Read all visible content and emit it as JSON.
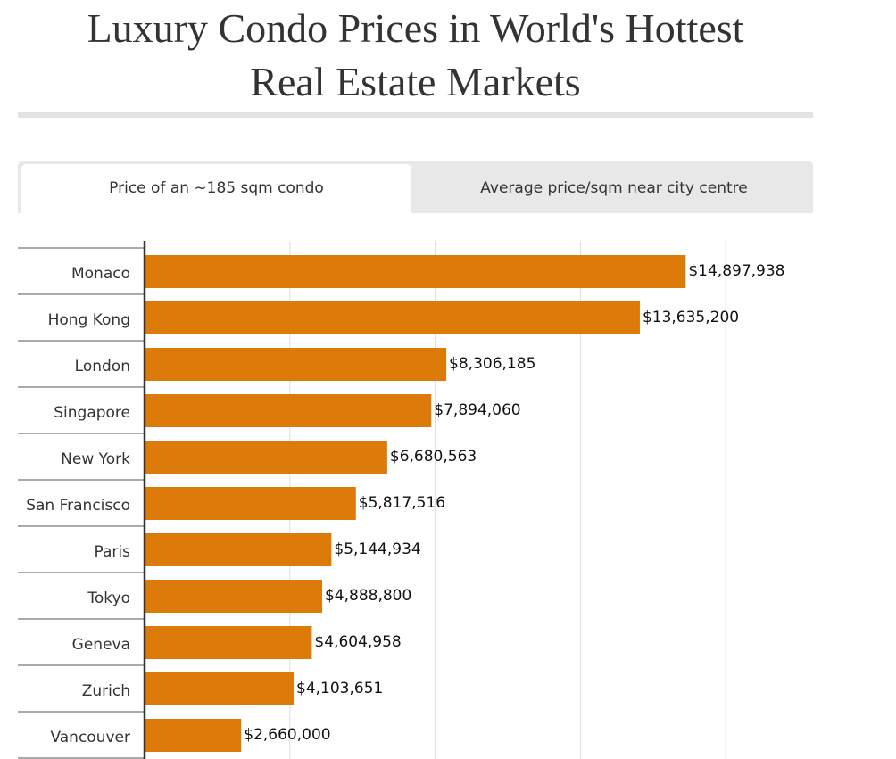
{
  "title_line1": "Luxury Condo Prices in World's Hottest",
  "title_line2": "Real Estate Markets",
  "tabs": [
    {
      "label": "Price of an ~185 sqm condo",
      "active": true
    },
    {
      "label": "Average price/sqm near city centre",
      "active": false
    }
  ],
  "colors": {
    "bar": "#dc7a0a",
    "grid": "#dddddd",
    "axis": "#333333"
  },
  "chart_data": {
    "type": "bar",
    "orientation": "horizontal",
    "categories": [
      "Monaco",
      "Hong Kong",
      "London",
      "Singapore",
      "New York",
      "San Francisco",
      "Paris",
      "Tokyo",
      "Geneva",
      "Zurich",
      "Vancouver"
    ],
    "values": [
      14897938,
      13635200,
      8306185,
      7894060,
      6680563,
      5817516,
      5144934,
      4888800,
      4604958,
      4103651,
      2660000
    ],
    "value_labels": [
      "$14,897,938",
      "$13,635,200",
      "$8,306,185",
      "$7,894,060",
      "$6,680,563",
      "$5,817,516",
      "$5,144,934",
      "$4,888,800",
      "$4,604,958",
      "$4,103,651",
      "$2,660,000"
    ],
    "xlim": [
      0,
      20000000
    ],
    "gridlines": [
      4000000,
      8000000,
      12000000,
      16000000
    ],
    "grid": true
  }
}
